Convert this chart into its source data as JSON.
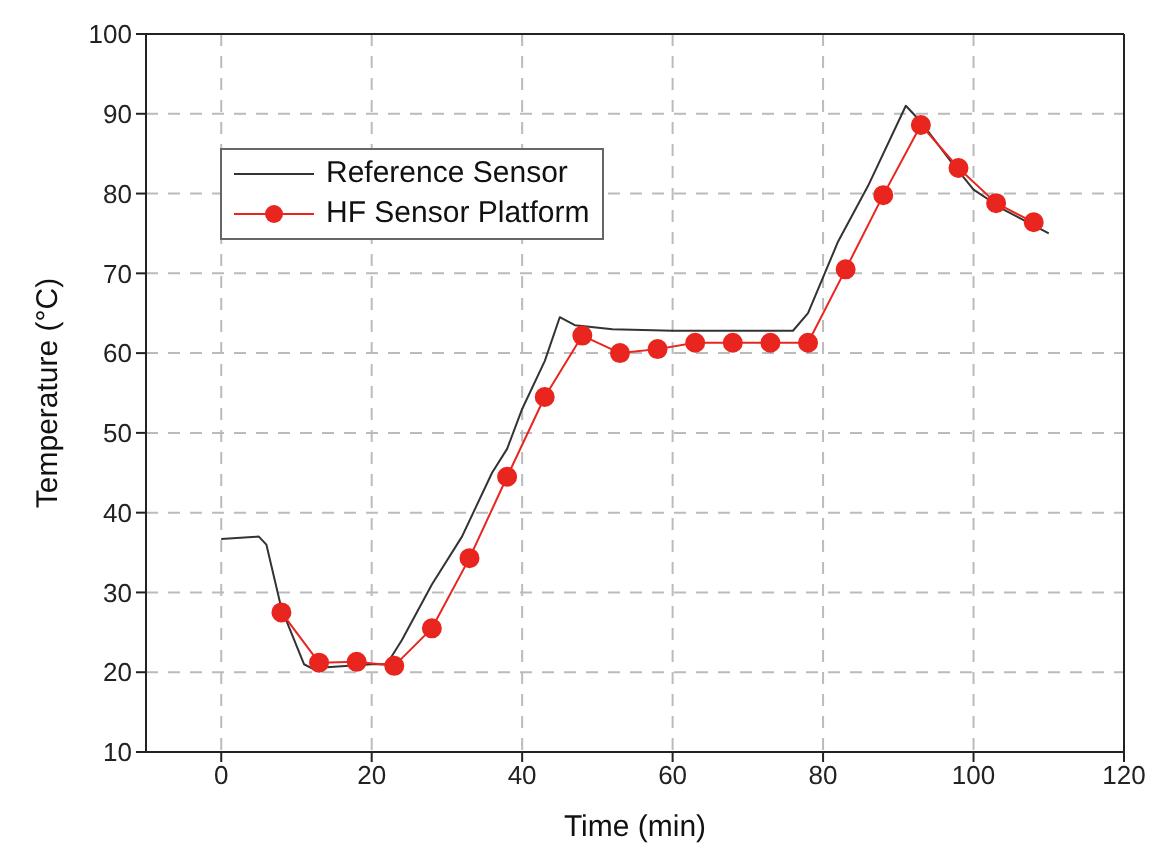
{
  "chart_data": {
    "type": "line",
    "xlabel": "Time (min)",
    "ylabel": "Temperature (°C)",
    "xlim": [
      -10,
      120
    ],
    "xticks": [
      0,
      20,
      40,
      60,
      80,
      100,
      120
    ],
    "ylim": [
      10,
      100
    ],
    "yticks": [
      10,
      20,
      30,
      40,
      50,
      60,
      70,
      80,
      90,
      100
    ],
    "grid": true,
    "legend": "top left",
    "series": [
      {
        "name": "Reference Sensor",
        "color": "#333333",
        "marker": "none",
        "x": [
          0,
          5,
          6,
          8,
          11,
          12,
          20,
          22,
          24,
          28,
          32,
          36,
          38,
          40,
          43,
          45,
          47,
          52,
          60,
          76,
          78,
          82,
          86,
          91,
          93,
          97,
          100,
          104,
          110
        ],
        "values": [
          36.7,
          37,
          36,
          28,
          21,
          20.5,
          21,
          21,
          24,
          31,
          37,
          45,
          48,
          53,
          59,
          64.5,
          63.5,
          63,
          62.8,
          62.8,
          65,
          74,
          81,
          91,
          89,
          84,
          80.5,
          78,
          75
        ]
      },
      {
        "name": "HF Sensor Platform",
        "color": "#e8251e",
        "marker": "circle",
        "x": [
          8,
          13,
          18,
          23,
          28,
          33,
          38,
          43,
          48,
          53,
          58,
          63,
          68,
          73,
          78,
          83,
          88,
          93,
          98,
          103,
          108
        ],
        "values": [
          27.5,
          21.2,
          21.3,
          20.8,
          25.5,
          34.3,
          44.5,
          54.5,
          62.2,
          60,
          60.5,
          61.3,
          61.3,
          61.3,
          61.3,
          70.5,
          79.8,
          88.6,
          83.2,
          78.8,
          76.4
        ]
      }
    ]
  }
}
